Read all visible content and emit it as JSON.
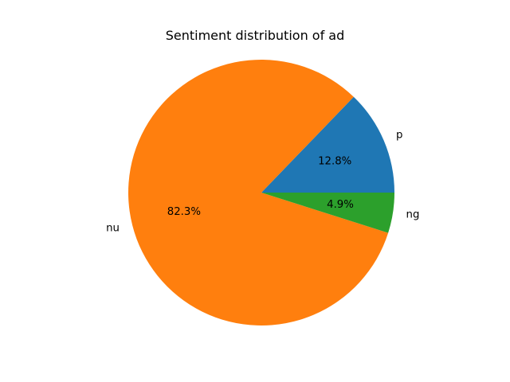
{
  "chart_data": {
    "type": "pie",
    "title": "Sentiment distribution of ad",
    "categories": [
      "p",
      "nu",
      "ng"
    ],
    "values": [
      12.8,
      82.3,
      4.9
    ],
    "value_labels": [
      "12.8%",
      "82.3%",
      "4.9%"
    ],
    "colors": [
      "#1f77b4",
      "#ff7f0e",
      "#2ca02c"
    ],
    "start_angle_deg": 0,
    "direction": "counterclockwise",
    "legend": "none"
  }
}
